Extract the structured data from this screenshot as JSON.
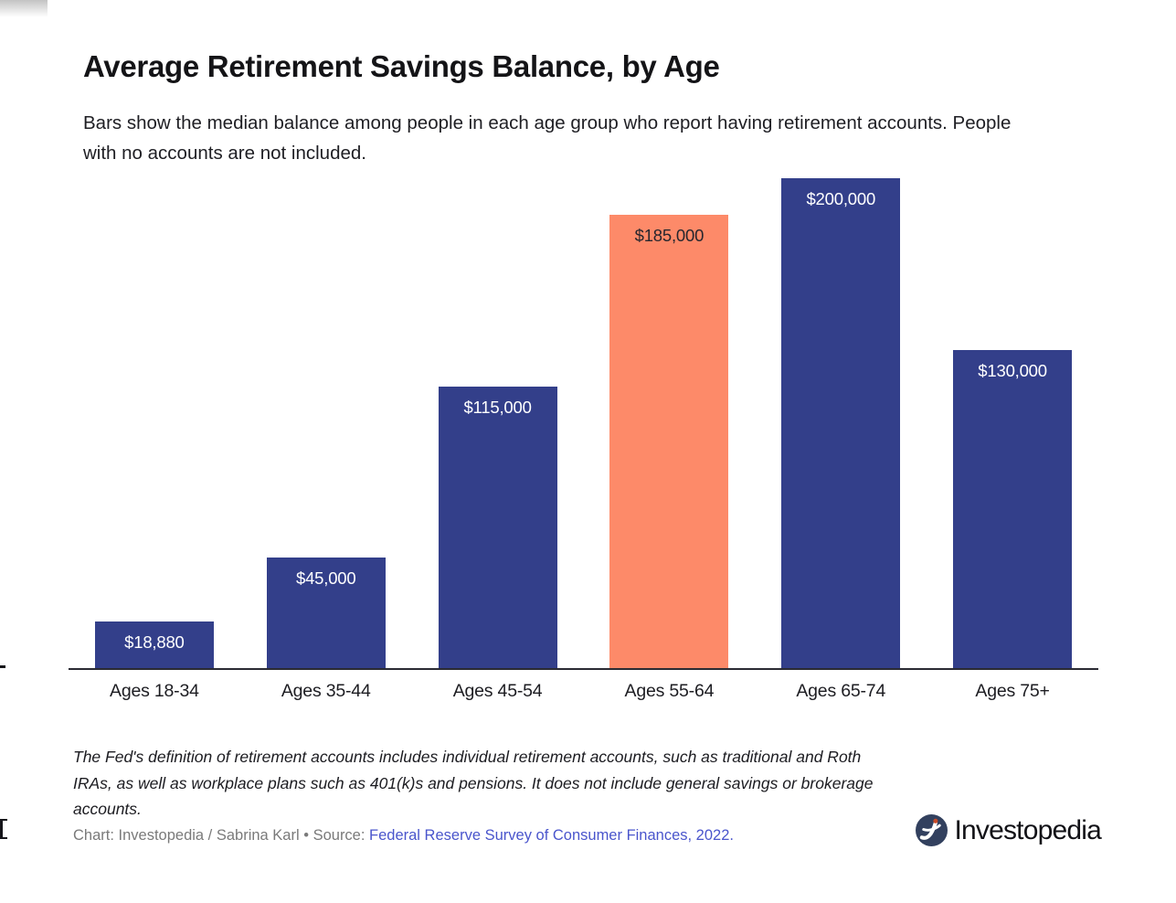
{
  "header": {
    "title": "Average Retirement Savings Balance, by Age",
    "subtitle": "Bars show the median balance among people in each age group who report having retirement accounts. People with no accounts are not included."
  },
  "chart_data": {
    "type": "bar",
    "title": "Average Retirement Savings Balance, by Age",
    "xlabel": "",
    "ylabel": "",
    "categories": [
      "Ages 18-34",
      "Ages 35-44",
      "Ages 45-54",
      "Ages 55-64",
      "Ages 65-74",
      "Ages 75+"
    ],
    "values": [
      18880,
      45000,
      115000,
      185000,
      200000,
      130000
    ],
    "value_labels": [
      "$18,880",
      "$45,000",
      "$115,000",
      "$185,000",
      "$200,000",
      "$130,000"
    ],
    "highlight_index": 3,
    "ylim": [
      0,
      200000
    ],
    "grid": false,
    "legend": "none",
    "colors": {
      "bar": "#333f8a",
      "highlight_bar": "#fd8a69",
      "label_on_bar": "#ffffff",
      "label_on_highlight": "#26262e",
      "axis_line": "#2b2b33"
    }
  },
  "footnote": "The Fed's definition of retirement accounts includes individual retirement accounts, such as traditional and Roth IRAs, as well as workplace plans such as 401(k)s and pensions. It does not include general savings or brokerage accounts.",
  "credit": {
    "prefix": "Chart: Investopedia / Sabrina Karl • Source: ",
    "link_text": "Federal Reserve Survey of Consumer Finances, 2022.",
    "link_color": "#4a55cc"
  },
  "logo": {
    "text": "Investopedia",
    "icon_circle_color": "#32405e",
    "icon_dot_color": "#c84b28"
  }
}
